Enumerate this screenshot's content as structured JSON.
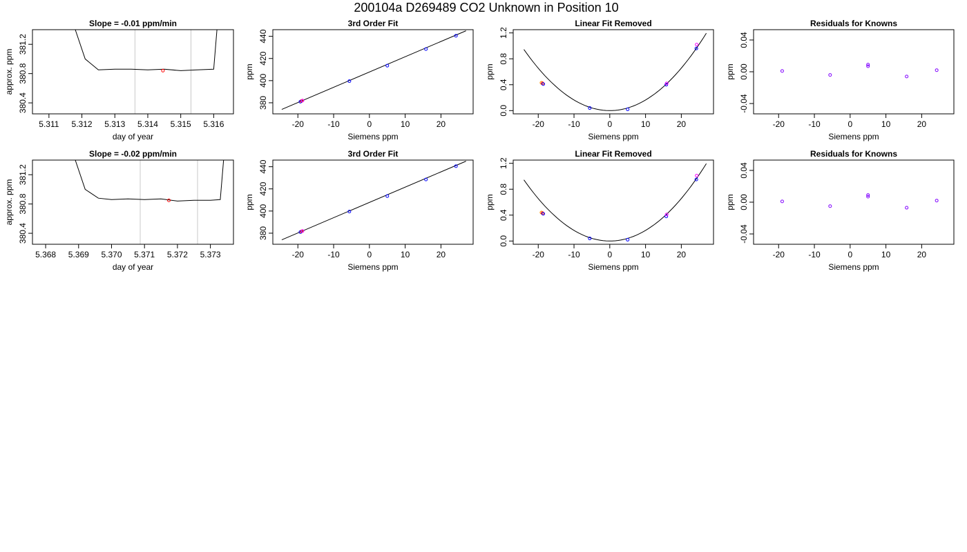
{
  "page_title": "200104a      D269489    CO2 Unknown in Position  10",
  "colors": {
    "frame": "#000000",
    "trace": "#000000",
    "vline": "#c8c8c8",
    "point_red": "#ff0000",
    "point_blue": "#0000ff",
    "point_magenta": "#ff00ff",
    "point_orange": "#ff8c00",
    "point_purple": "#8000ff"
  },
  "chart_data": [
    {
      "type": "line",
      "title": "Slope =  -0.01  ppm/min",
      "xlabel": "day of year",
      "ylabel": "approx. ppm",
      "xlim": [
        5.3105,
        5.3166
      ],
      "ylim": [
        380.25,
        381.4
      ],
      "xticks": [
        "5.311",
        "5.312",
        "5.313",
        "5.314",
        "5.315",
        "5.316"
      ],
      "yticks": [
        "380.4",
        "380.8",
        "381.2"
      ],
      "vlines": [
        5.31361,
        5.31531
      ],
      "series": [
        {
          "values_x": [
            5.3118,
            5.3121,
            5.3125,
            5.313,
            5.3135,
            5.314,
            5.3145,
            5.315,
            5.3155,
            5.316,
            5.3161
          ],
          "values_y": [
            381.4,
            381.0,
            380.85,
            380.86,
            380.86,
            380.85,
            380.86,
            380.84,
            380.85,
            380.86,
            381.4
          ]
        }
      ],
      "points": [
        {
          "x": 5.31446,
          "y": 380.84,
          "color": "red"
        }
      ]
    },
    {
      "type": "scatter",
      "title": "3rd Order Fit",
      "xlabel": "Siemens ppm",
      "ylabel": "ppm",
      "xlim": [
        -27,
        29
      ],
      "ylim": [
        370,
        446
      ],
      "xticks": [
        "-20",
        "-10",
        "0",
        "10",
        "20"
      ],
      "yticks": [
        "380",
        "400",
        "420",
        "440"
      ],
      "fit_line": {
        "x": [
          -24.5,
          27
        ],
        "y": [
          374,
          445
        ]
      },
      "points": [
        {
          "x": -19,
          "y": 381.5,
          "color": "red"
        },
        {
          "x": -19.3,
          "y": 381,
          "color": "blue"
        },
        {
          "x": -18.7,
          "y": 382,
          "color": "magenta"
        },
        {
          "x": -5.6,
          "y": 399.5,
          "color": "blue"
        },
        {
          "x": 5,
          "y": 413.5,
          "color": "blue"
        },
        {
          "x": 15.8,
          "y": 428.5,
          "color": "blue"
        },
        {
          "x": 24.2,
          "y": 440.5,
          "color": "blue"
        }
      ]
    },
    {
      "type": "scatter",
      "title": "Linear Fit Removed",
      "xlabel": "Siemens ppm",
      "ylabel": "ppm",
      "xlim": [
        -27,
        29
      ],
      "ylim": [
        -0.05,
        1.25
      ],
      "xticks": [
        "-20",
        "-10",
        "0",
        "10",
        "20"
      ],
      "yticks": [
        "0.0",
        "0.4",
        "0.8",
        "1.2"
      ],
      "curve": {
        "form": "a*x^2",
        "a": 0.00164,
        "xmin": -24,
        "xmax": 27
      },
      "points": [
        {
          "x": -19.1,
          "y": 0.43,
          "color": "orange"
        },
        {
          "x": -18.8,
          "y": 0.42,
          "color": "red"
        },
        {
          "x": -18.6,
          "y": 0.41,
          "color": "blue"
        },
        {
          "x": -5.6,
          "y": 0.04,
          "color": "blue"
        },
        {
          "x": 5,
          "y": 0.02,
          "color": "blue"
        },
        {
          "x": 15.8,
          "y": 0.4,
          "color": "blue"
        },
        {
          "x": 15.9,
          "y": 0.42,
          "color": "magenta"
        },
        {
          "x": 24.2,
          "y": 0.96,
          "color": "blue"
        },
        {
          "x": 24.3,
          "y": 1.02,
          "color": "magenta"
        }
      ]
    },
    {
      "type": "scatter",
      "title": "Residuals for Knowns",
      "xlabel": "Siemens ppm",
      "ylabel": "ppm",
      "xlim": [
        -27,
        29
      ],
      "ylim": [
        -0.053,
        0.053
      ],
      "xticks": [
        "-20",
        "-10",
        "0",
        "10",
        "20"
      ],
      "yticks": [
        "-0.04",
        "0.00",
        "0.04"
      ],
      "points": [
        {
          "x": -19,
          "y": 0.001,
          "color": "purple"
        },
        {
          "x": -5.6,
          "y": -0.004,
          "color": "purple"
        },
        {
          "x": 5,
          "y": 0.007,
          "color": "purple"
        },
        {
          "x": 5,
          "y": 0.009,
          "color": "purple"
        },
        {
          "x": 15.8,
          "y": -0.006,
          "color": "purple"
        },
        {
          "x": 24.2,
          "y": 0.002,
          "color": "purple"
        }
      ]
    },
    {
      "type": "line",
      "title": "Slope =  -0.02  ppm/min",
      "xlabel": "day of year",
      "ylabel": "approx. ppm",
      "xlim": [
        5.3676,
        5.3737
      ],
      "ylim": [
        380.25,
        381.4
      ],
      "xticks": [
        "5.368",
        "5.369",
        "5.370",
        "5.371",
        "5.372",
        "5.373"
      ],
      "yticks": [
        "380.4",
        "380.8",
        "381.2"
      ],
      "vlines": [
        5.37087,
        5.37261
      ],
      "series": [
        {
          "values_x": [
            5.3689,
            5.3692,
            5.3696,
            5.37,
            5.3705,
            5.371,
            5.3715,
            5.372,
            5.3725,
            5.373,
            5.3733,
            5.3734
          ],
          "values_y": [
            381.4,
            381.0,
            380.88,
            380.86,
            380.87,
            380.86,
            380.87,
            380.84,
            380.85,
            380.85,
            380.86,
            381.4
          ]
        }
      ],
      "points": [
        {
          "x": 5.37174,
          "y": 380.85,
          "color": "red"
        }
      ]
    },
    {
      "type": "scatter",
      "title": "3rd Order Fit",
      "xlabel": "Siemens ppm",
      "ylabel": "ppm",
      "xlim": [
        -27,
        29
      ],
      "ylim": [
        370,
        446
      ],
      "xticks": [
        "-20",
        "-10",
        "0",
        "10",
        "20"
      ],
      "yticks": [
        "380",
        "400",
        "420",
        "440"
      ],
      "fit_line": {
        "x": [
          -24.5,
          27
        ],
        "y": [
          374,
          445
        ]
      },
      "points": [
        {
          "x": -19,
          "y": 381.5,
          "color": "red"
        },
        {
          "x": -19.3,
          "y": 381,
          "color": "blue"
        },
        {
          "x": -18.7,
          "y": 382,
          "color": "magenta"
        },
        {
          "x": -5.6,
          "y": 399.5,
          "color": "blue"
        },
        {
          "x": 5,
          "y": 413.5,
          "color": "blue"
        },
        {
          "x": 15.8,
          "y": 428.5,
          "color": "blue"
        },
        {
          "x": 24.2,
          "y": 440.5,
          "color": "blue"
        }
      ]
    },
    {
      "type": "scatter",
      "title": "Linear Fit Removed",
      "xlabel": "Siemens ppm",
      "ylabel": "ppm",
      "xlim": [
        -27,
        29
      ],
      "ylim": [
        -0.05,
        1.25
      ],
      "xticks": [
        "-20",
        "-10",
        "0",
        "10",
        "20"
      ],
      "yticks": [
        "0.0",
        "0.4",
        "0.8",
        "1.2"
      ],
      "curve": {
        "form": "a*x^2",
        "a": 0.00164,
        "xmin": -24,
        "xmax": 27
      },
      "points": [
        {
          "x": -19.1,
          "y": 0.44,
          "color": "orange"
        },
        {
          "x": -18.8,
          "y": 0.43,
          "color": "red"
        },
        {
          "x": -18.6,
          "y": 0.42,
          "color": "blue"
        },
        {
          "x": -5.6,
          "y": 0.04,
          "color": "blue"
        },
        {
          "x": 5,
          "y": 0.02,
          "color": "blue"
        },
        {
          "x": 15.8,
          "y": 0.38,
          "color": "blue"
        },
        {
          "x": 15.9,
          "y": 0.41,
          "color": "magenta"
        },
        {
          "x": 24.2,
          "y": 0.95,
          "color": "blue"
        },
        {
          "x": 24.3,
          "y": 1.01,
          "color": "magenta"
        }
      ]
    },
    {
      "type": "scatter",
      "title": "Residuals for Knowns",
      "xlabel": "Siemens ppm",
      "ylabel": "ppm",
      "xlim": [
        -27,
        29
      ],
      "ylim": [
        -0.053,
        0.053
      ],
      "xticks": [
        "-20",
        "-10",
        "0",
        "10",
        "20"
      ],
      "yticks": [
        "-0.04",
        "0.00",
        "0.04"
      ],
      "points": [
        {
          "x": -19,
          "y": 0.001,
          "color": "purple"
        },
        {
          "x": -5.6,
          "y": -0.005,
          "color": "purple"
        },
        {
          "x": 5,
          "y": 0.007,
          "color": "purple"
        },
        {
          "x": 5,
          "y": 0.009,
          "color": "purple"
        },
        {
          "x": 15.8,
          "y": -0.007,
          "color": "purple"
        },
        {
          "x": 24.2,
          "y": 0.002,
          "color": "purple"
        }
      ]
    }
  ]
}
